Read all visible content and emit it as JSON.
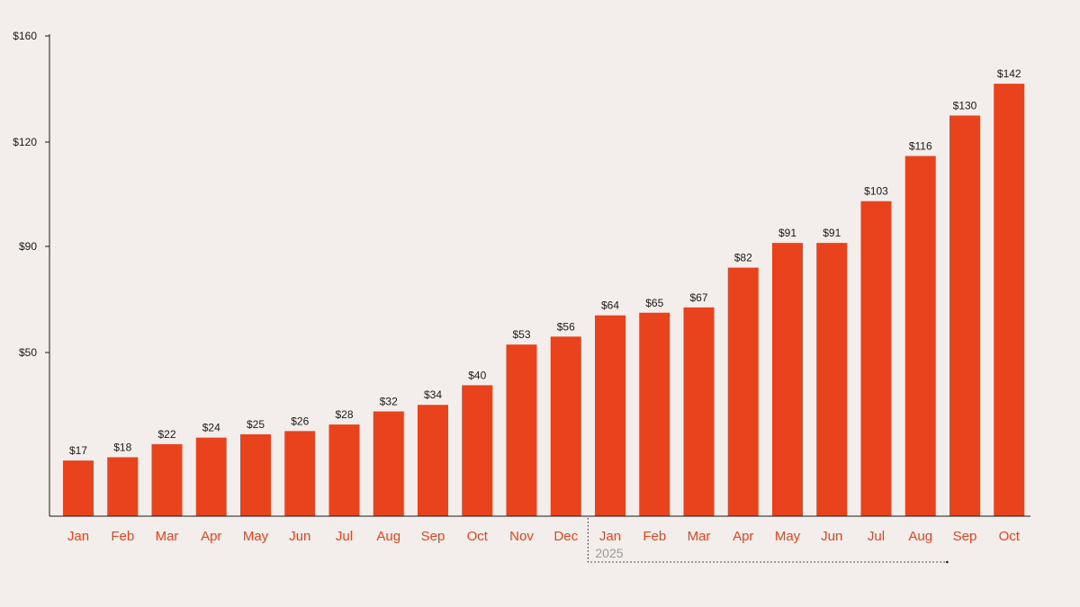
{
  "colors": {
    "background": "#f3eeeb",
    "bar": "#e8431d",
    "axis": "#1a1a1a",
    "value_label": "#1a1a1a",
    "x_label": "#e8431d",
    "group_annotation": "#9a9a9a"
  },
  "chart_data": {
    "type": "bar",
    "title": "",
    "xlabel": "",
    "ylabel": "",
    "categories": [
      "Jan",
      "Feb",
      "Mar",
      "Apr",
      "May",
      "Jun",
      "Jul",
      "Aug",
      "Sep",
      "Oct",
      "Nov",
      "Dec",
      "Jan",
      "Feb",
      "Mar",
      "Apr",
      "May",
      "Jun",
      "Jul",
      "Aug",
      "Sep",
      "Oct"
    ],
    "values": [
      17,
      18,
      22,
      24,
      25,
      26,
      28,
      32,
      34,
      40,
      53,
      56,
      64,
      65,
      67,
      82,
      91,
      91,
      103,
      116,
      130,
      142
    ],
    "value_labels": [
      "$17",
      "$18",
      "$22",
      "$24",
      "$25",
      "$26",
      "$28",
      "$32",
      "$34",
      "$40",
      "$53",
      "$56",
      "$64",
      "$65",
      "$67",
      "$82",
      "$91",
      "$91",
      "$103",
      "$116",
      "$130",
      "$142"
    ],
    "y_ticks": [
      {
        "value": 50,
        "label": "$50"
      },
      {
        "value": 90,
        "label": "$90"
      },
      {
        "value": 120,
        "label": "$120"
      },
      {
        "value": 160,
        "label": "$160"
      }
    ],
    "ylim": [
      0,
      160
    ],
    "grid": false,
    "legend": "none",
    "annotations": [
      {
        "label": "2025",
        "from_index": 12,
        "to_index": 20
      }
    ]
  }
}
